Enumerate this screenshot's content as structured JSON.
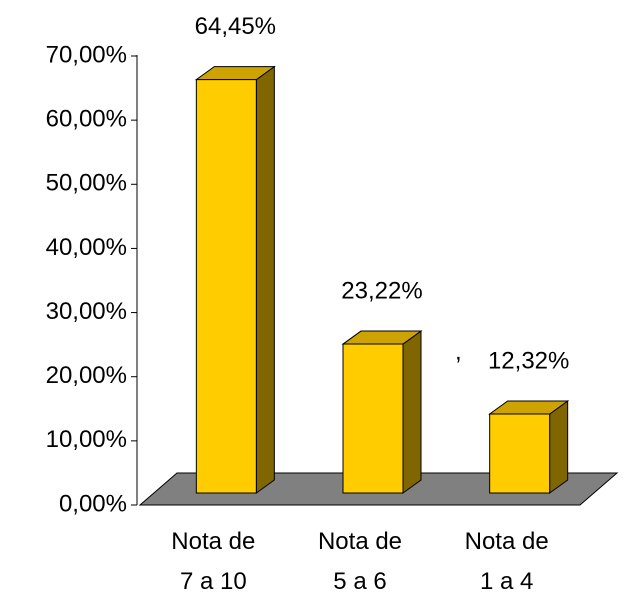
{
  "chart_data": {
    "type": "bar3d",
    "categories": [
      "Nota de 7 a 10",
      "Nota de 5 a 6",
      "Nota de 1 a 4"
    ],
    "values": [
      64.45,
      23.22,
      12.32
    ],
    "value_labels": [
      "64,45%",
      "23,22%",
      "12,32%"
    ],
    "color": "#ffcc00",
    "ylim": [
      0,
      70
    ],
    "yticks": [
      {
        "value": 0,
        "label": "0,00%"
      },
      {
        "value": 10,
        "label": "10,00%"
      },
      {
        "value": 20,
        "label": "20,00%"
      },
      {
        "value": 30,
        "label": "30,00%"
      },
      {
        "value": 40,
        "label": "40,00%"
      },
      {
        "value": 50,
        "label": "50,00%"
      },
      {
        "value": 60,
        "label": "60,00%"
      },
      {
        "value": 70,
        "label": "70,00%"
      }
    ],
    "annotation": ","
  }
}
